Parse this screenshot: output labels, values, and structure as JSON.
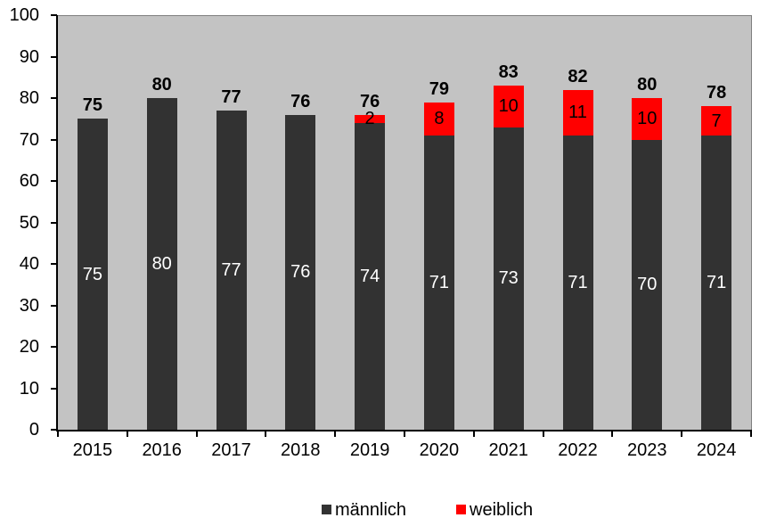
{
  "chart_data": {
    "type": "bar",
    "stacked": true,
    "title": "",
    "categories": [
      "2015",
      "2016",
      "2017",
      "2018",
      "2019",
      "2020",
      "2021",
      "2022",
      "2023",
      "2024"
    ],
    "series": [
      {
        "name": "männlich",
        "color": "#323232",
        "label_color": "#ffffff",
        "values": [
          75,
          80,
          77,
          76,
          74,
          71,
          73,
          71,
          70,
          71
        ]
      },
      {
        "name": "weiblich",
        "color": "#ff0000",
        "label_color": "#000000",
        "values": [
          0,
          0,
          0,
          0,
          2,
          8,
          10,
          11,
          10,
          7
        ]
      }
    ],
    "totals": [
      75,
      80,
      77,
      76,
      76,
      79,
      83,
      82,
      80,
      78
    ],
    "ylim": [
      0,
      100
    ],
    "yticks": [
      0,
      10,
      20,
      30,
      40,
      50,
      60,
      70,
      80,
      90,
      100
    ],
    "xlabel": "",
    "ylabel": "",
    "grid": false,
    "legend_position": "bottom",
    "plot_bg_color": "#c3c3c3",
    "axis_color": "#000000",
    "plot_border_color": "#7f7f7f"
  }
}
